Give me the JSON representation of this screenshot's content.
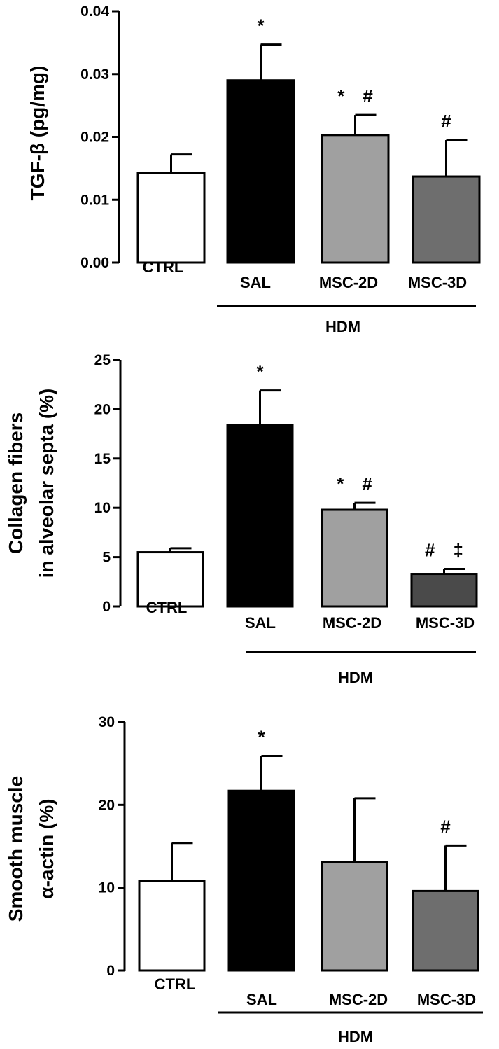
{
  "figure": {
    "panels": [
      {
        "ylabel_lines": [
          "TGF-β (pg/mg)"
        ],
        "group_label": "HDM"
      },
      {
        "ylabel_lines": [
          "Collagen fibers",
          "in alveolar septa  (%)"
        ],
        "group_label": "HDM"
      },
      {
        "ylabel_lines": [
          "Smooth muscle",
          "α-actin (%)"
        ],
        "group_label": "HDM"
      }
    ]
  },
  "chart_data": [
    {
      "type": "bar",
      "categories": [
        "CTRL",
        "SAL",
        "MSC-2D",
        "MSC-3D"
      ],
      "values": [
        0.0143,
        0.029,
        0.0203,
        0.0137
      ],
      "error": [
        0.0029,
        0.0057,
        0.0032,
        0.0058
      ],
      "significance": [
        "",
        "*",
        "* #",
        "#"
      ],
      "colors": [
        "#ffffff",
        "#000000",
        "#a0a0a0",
        "#6e6e6e"
      ],
      "ylabel": "TGF-β (pg/mg)",
      "ylim": [
        0,
        0.04
      ],
      "yticks": [
        "0.00",
        "0.01",
        "0.02",
        "0.03",
        "0.04"
      ],
      "group": {
        "label": "HDM",
        "categories": [
          "SAL",
          "MSC-2D",
          "MSC-3D"
        ]
      }
    },
    {
      "type": "bar",
      "categories": [
        "CTRL",
        "SAL",
        "MSC-2D",
        "MSC-3D"
      ],
      "values": [
        5.5,
        18.4,
        9.8,
        3.3
      ],
      "error": [
        0.4,
        3.5,
        0.7,
        0.5
      ],
      "significance": [
        "",
        "*",
        "* #",
        "# ‡"
      ],
      "colors": [
        "#ffffff",
        "#000000",
        "#a0a0a0",
        "#4a4a4a"
      ],
      "ylabel": "Collagen fibers in alveolar septa  (%)",
      "ylim": [
        0,
        25
      ],
      "yticks": [
        "0",
        "5",
        "10",
        "15",
        "20",
        "25"
      ],
      "group": {
        "label": "HDM",
        "categories": [
          "SAL",
          "MSC-2D",
          "MSC-3D"
        ]
      }
    },
    {
      "type": "bar",
      "categories": [
        "CTRL",
        "SAL",
        "MSC-2D",
        "MSC-3D"
      ],
      "values": [
        10.8,
        21.7,
        13.1,
        9.6
      ],
      "error": [
        4.6,
        4.2,
        7.7,
        5.5
      ],
      "significance": [
        "",
        "*",
        "",
        "#"
      ],
      "colors": [
        "#ffffff",
        "#000000",
        "#a0a0a0",
        "#6e6e6e"
      ],
      "ylabel": "Smooth muscle α-actin (%)",
      "ylim": [
        0,
        30
      ],
      "yticks": [
        "0",
        "10",
        "20",
        "30"
      ],
      "group": {
        "label": "HDM",
        "categories": [
          "SAL",
          "MSC-2D",
          "MSC-3D"
        ]
      }
    }
  ]
}
